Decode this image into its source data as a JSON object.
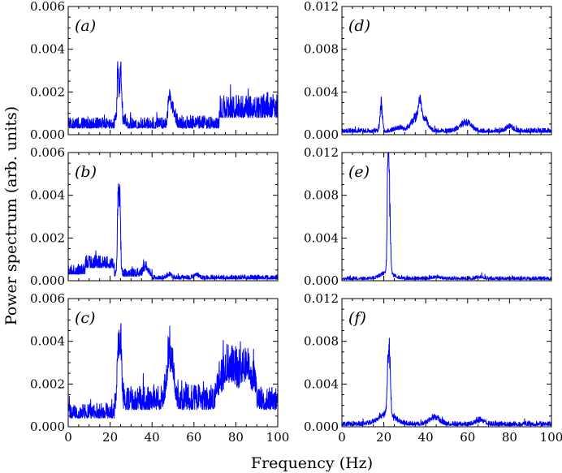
{
  "figure": {
    "ylabel": "Power spectrum (arb. units)",
    "xlabel": "Frequency (Hz)",
    "series_color": "#0000ff"
  },
  "chart_data": [
    {
      "type": "line",
      "panel": "(a)",
      "xlim": [
        0,
        100
      ],
      "ylim": [
        0,
        0.006
      ],
      "yticks": [
        "0.000",
        "0.002",
        "0.004",
        "0.006"
      ],
      "xticks": [
        "0",
        "20",
        "40",
        "60",
        "80",
        "100"
      ],
      "show_xticklabels": false,
      "noise": [
        {
          "from": 0,
          "to": 22,
          "base": 0.0003,
          "amp": 0.0005
        },
        {
          "from": 22,
          "to": 28,
          "base": 0.0004,
          "amp": 0.0006
        },
        {
          "from": 28,
          "to": 47,
          "base": 0.0003,
          "amp": 0.0005
        },
        {
          "from": 47,
          "to": 72,
          "base": 0.0003,
          "amp": 0.0006
        },
        {
          "from": 72,
          "to": 100,
          "base": 0.0008,
          "amp": 0.0011
        }
      ],
      "peaks": [
        {
          "f": 23.7,
          "height": 0.0031,
          "width": 0.35
        },
        {
          "f": 25.0,
          "height": 0.0034,
          "width": 0.45
        },
        {
          "f": 48.3,
          "height": 0.0017,
          "width": 0.6
        },
        {
          "f": 50.0,
          "height": 0.0009,
          "width": 1.0
        }
      ]
    },
    {
      "type": "line",
      "panel": "(d)",
      "xlim": [
        0,
        100
      ],
      "ylim": [
        0,
        0.012
      ],
      "yticks": [
        "0.000",
        "0.004",
        "0.008",
        "0.012"
      ],
      "xticks": [
        "0",
        "20",
        "40",
        "60",
        "80",
        "100"
      ],
      "show_xticklabels": false,
      "noise": [
        {
          "from": 0,
          "to": 100,
          "base": 0.0002,
          "amp": 0.0004
        }
      ],
      "peaks": [
        {
          "f": 18.8,
          "height": 0.0031,
          "width": 0.6
        },
        {
          "f": 27.0,
          "height": 0.0004,
          "width": 2.0
        },
        {
          "f": 35.5,
          "height": 0.0016,
          "width": 2.5
        },
        {
          "f": 37.3,
          "height": 0.0024,
          "width": 0.8
        },
        {
          "f": 40.0,
          "height": 0.001,
          "width": 1.5
        },
        {
          "f": 59.0,
          "height": 0.0011,
          "width": 2.5
        },
        {
          "f": 80.0,
          "height": 0.0006,
          "width": 1.5
        }
      ]
    },
    {
      "type": "line",
      "panel": "(b)",
      "xlim": [
        0,
        100
      ],
      "ylim": [
        0,
        0.006
      ],
      "yticks": [
        "0.000",
        "0.002",
        "0.004",
        "0.006"
      ],
      "xticks": [
        "0",
        "20",
        "40",
        "60",
        "80",
        "100"
      ],
      "show_xticklabels": false,
      "noise": [
        {
          "from": 0,
          "to": 8,
          "base": 0.0003,
          "amp": 0.0005
        },
        {
          "from": 8,
          "to": 22,
          "base": 0.0006,
          "amp": 0.0006
        },
        {
          "from": 22,
          "to": 40,
          "base": 0.0002,
          "amp": 0.0004
        },
        {
          "from": 40,
          "to": 100,
          "base": 7e-05,
          "amp": 0.0002
        }
      ],
      "peaks": [
        {
          "f": 23.8,
          "height": 0.004,
          "width": 0.35
        },
        {
          "f": 24.6,
          "height": 0.0044,
          "width": 0.4
        },
        {
          "f": 37.0,
          "height": 0.0005,
          "width": 1.0
        },
        {
          "f": 48.0,
          "height": 0.0002,
          "width": 1.0
        },
        {
          "f": 61.0,
          "height": 0.0002,
          "width": 1.0
        }
      ]
    },
    {
      "type": "line",
      "panel": "(e)",
      "xlim": [
        0,
        100
      ],
      "ylim": [
        0,
        0.012
      ],
      "yticks": [
        "0.000",
        "0.004",
        "0.008",
        "0.012"
      ],
      "xticks": [
        "0",
        "20",
        "40",
        "60",
        "80",
        "100"
      ],
      "show_xticklabels": false,
      "noise": [
        {
          "from": 0,
          "to": 100,
          "base": 0.0001,
          "amp": 0.0003
        }
      ],
      "peaks": [
        {
          "f": 22.0,
          "height": 0.0118,
          "width": 0.35
        },
        {
          "f": 22.6,
          "height": 0.009,
          "width": 0.5
        },
        {
          "f": 21.5,
          "height": 0.0008,
          "width": 3.0
        },
        {
          "f": 45.0,
          "height": 0.0002,
          "width": 2.0
        },
        {
          "f": 66.0,
          "height": 0.0002,
          "width": 1.5
        }
      ]
    },
    {
      "type": "line",
      "panel": "(c)",
      "xlim": [
        0,
        100
      ],
      "ylim": [
        0,
        0.006
      ],
      "yticks": [
        "0.000",
        "0.002",
        "0.004",
        "0.006"
      ],
      "xticks": [
        "0",
        "20",
        "40",
        "60",
        "80",
        "100"
      ],
      "show_xticklabels": true,
      "noise": [
        {
          "from": 0,
          "to": 22,
          "base": 0.0004,
          "amp": 0.0007
        },
        {
          "from": 22,
          "to": 28,
          "base": 0.0008,
          "amp": 0.001
        },
        {
          "from": 28,
          "to": 45,
          "base": 0.0008,
          "amp": 0.0011
        },
        {
          "from": 45,
          "to": 70,
          "base": 0.0008,
          "amp": 0.0012
        },
        {
          "from": 70,
          "to": 90,
          "base": 0.0013,
          "amp": 0.0016
        },
        {
          "from": 90,
          "to": 100,
          "base": 0.0008,
          "amp": 0.0011
        }
      ],
      "peaks": [
        {
          "f": 23.8,
          "height": 0.0034,
          "width": 0.45
        },
        {
          "f": 25.0,
          "height": 0.0036,
          "width": 0.5
        },
        {
          "f": 48.5,
          "height": 0.0028,
          "width": 1.5
        },
        {
          "f": 77.0,
          "height": 0.0012,
          "width": 3.0
        },
        {
          "f": 85.0,
          "height": 0.0011,
          "width": 2.5
        }
      ]
    },
    {
      "type": "line",
      "panel": "(f)",
      "xlim": [
        0,
        100
      ],
      "ylim": [
        0,
        0.012
      ],
      "yticks": [
        "0.000",
        "0.004",
        "0.008",
        "0.012"
      ],
      "xticks": [
        "0",
        "20",
        "40",
        "60",
        "80",
        "100"
      ],
      "show_xticklabels": true,
      "noise": [
        {
          "from": 0,
          "to": 100,
          "base": 0.0001,
          "amp": 0.0004
        }
      ],
      "peaks": [
        {
          "f": 22.0,
          "height": 0.0055,
          "width": 0.45
        },
        {
          "f": 22.8,
          "height": 0.006,
          "width": 0.45
        },
        {
          "f": 21.5,
          "height": 0.0012,
          "width": 4.0
        },
        {
          "f": 44.0,
          "height": 0.0009,
          "width": 2.5
        },
        {
          "f": 66.0,
          "height": 0.0005,
          "width": 2.0
        }
      ]
    }
  ]
}
